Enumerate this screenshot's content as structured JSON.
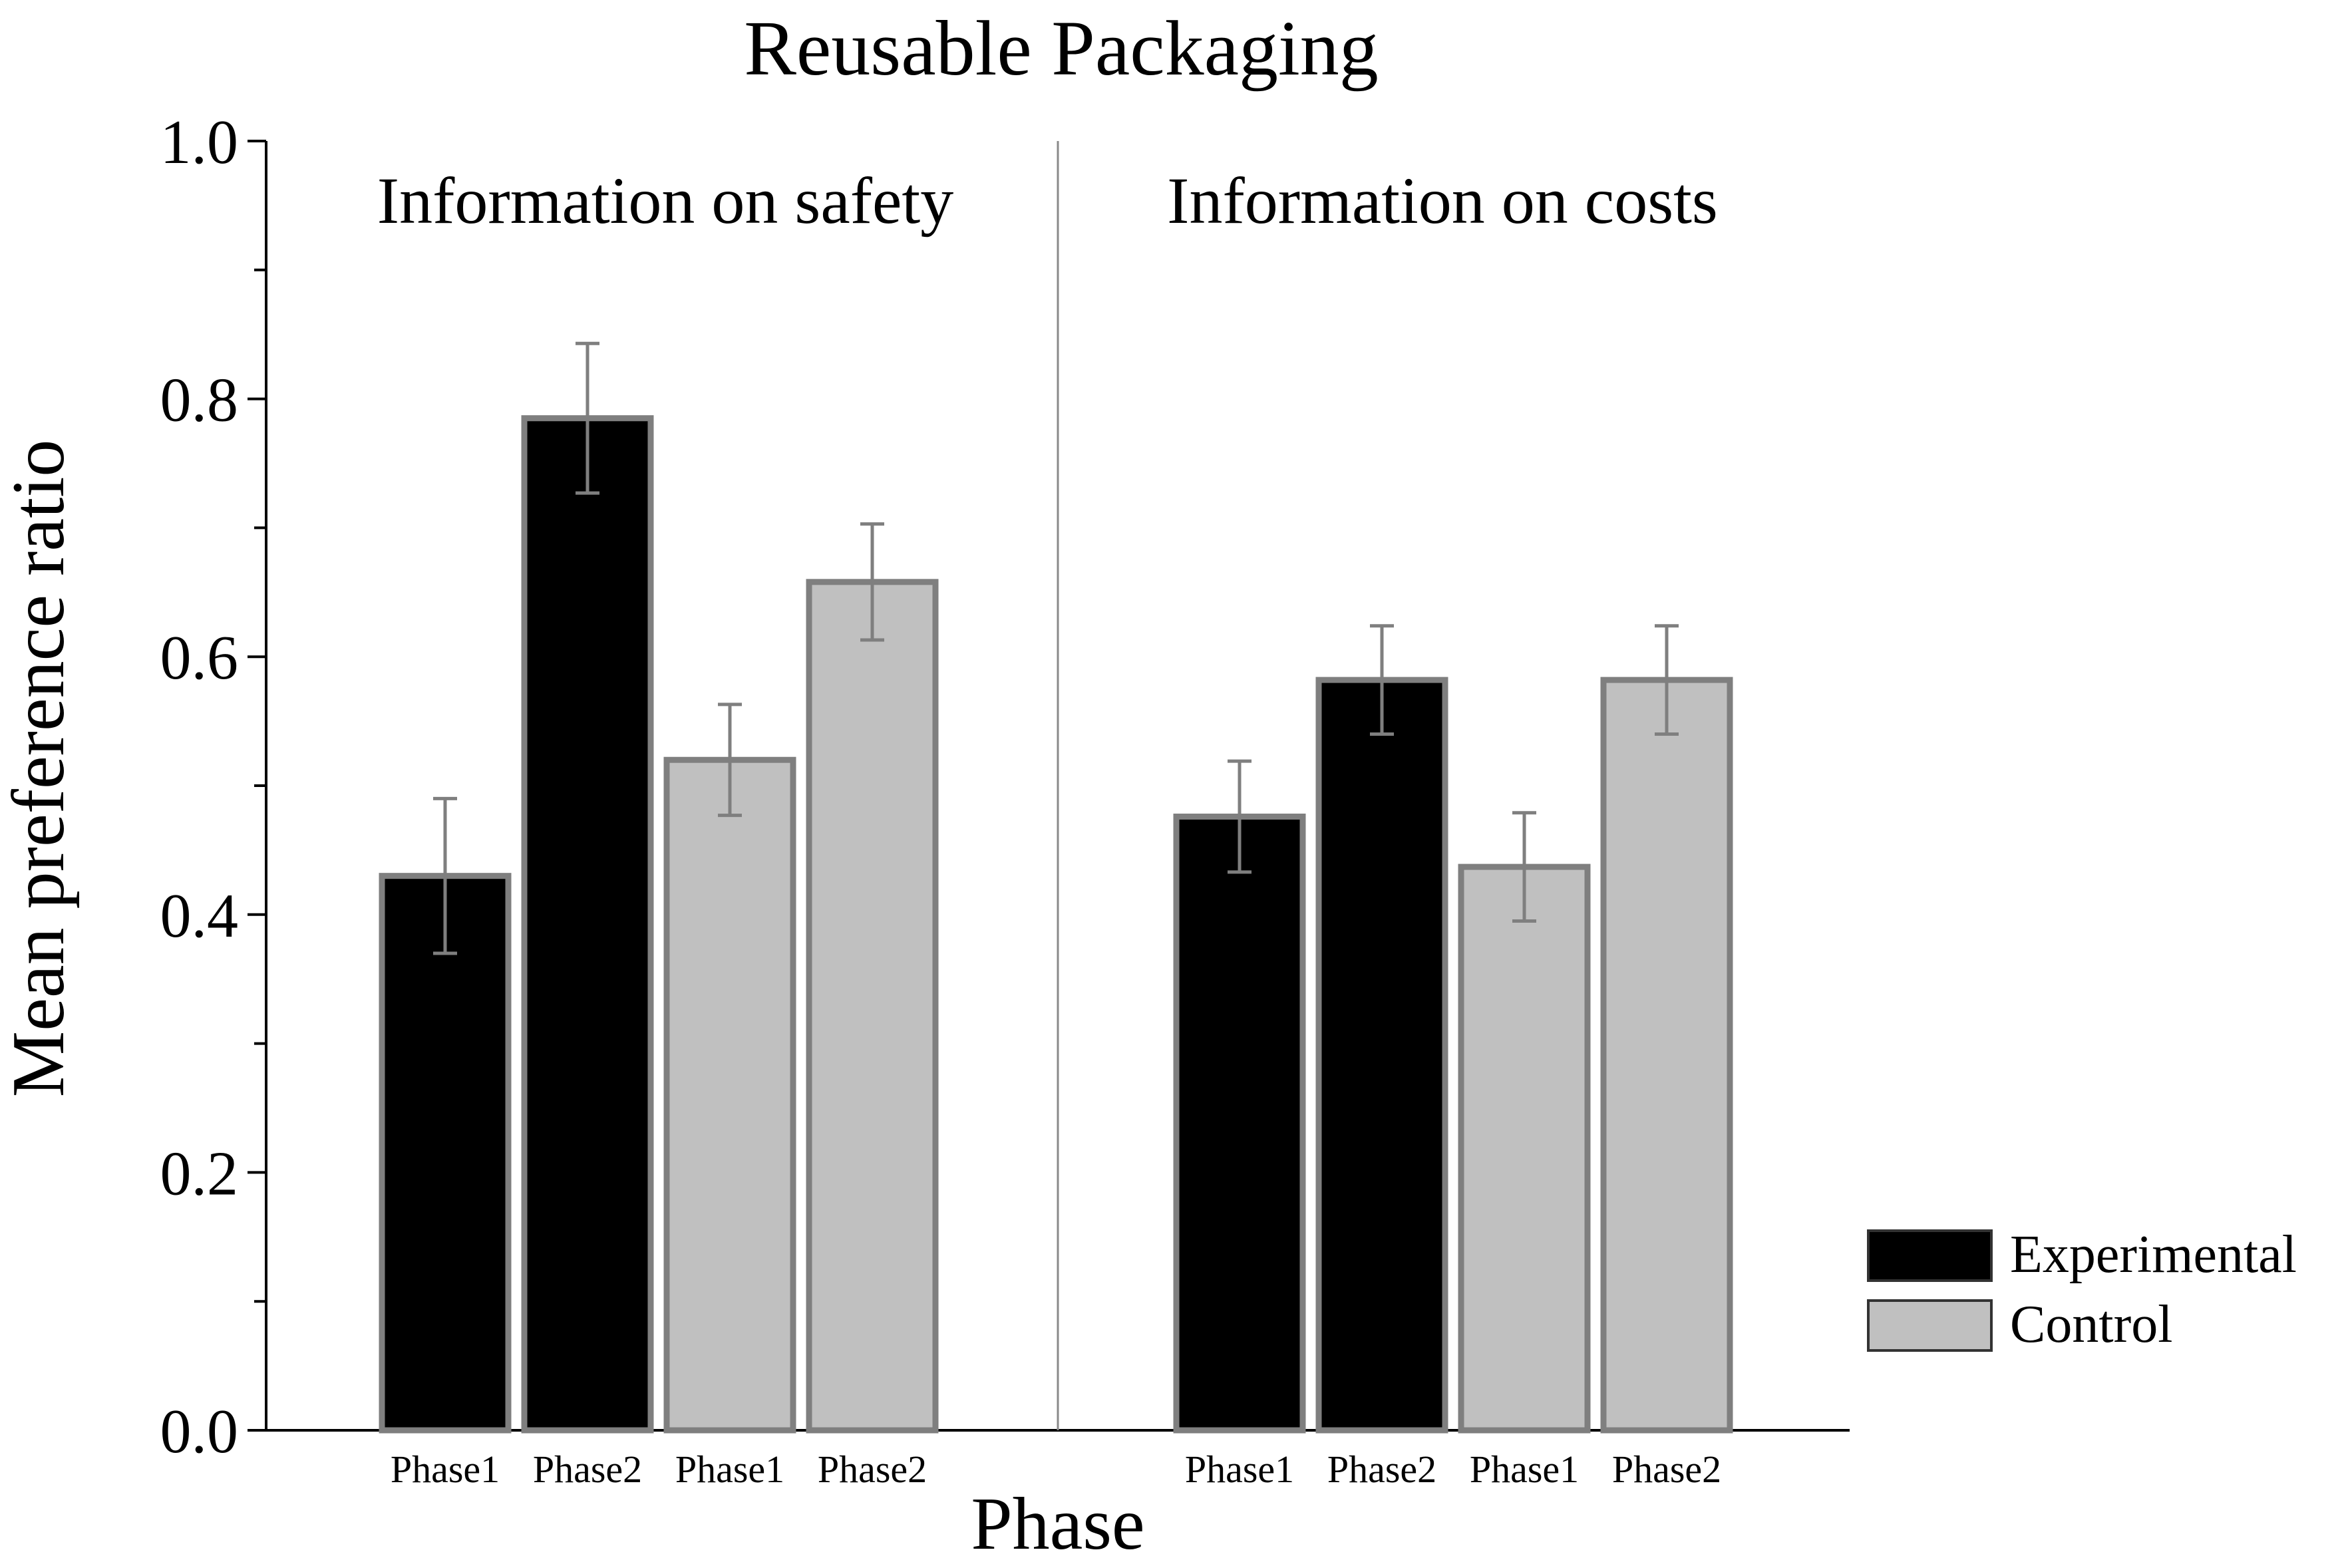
{
  "chart_data": {
    "type": "bar",
    "title": "Reusable Packaging",
    "xlabel": "Phase",
    "ylabel": "Mean preference ratio",
    "ylim": [
      0,
      1.0
    ],
    "yticks": [
      "0.0",
      "0.2",
      "0.4",
      "0.6",
      "0.8",
      "1.0"
    ],
    "groups": [
      {
        "label": "Information on safety",
        "bars": [
          {
            "category": "Phase1",
            "series": "Experimental",
            "value": 0.43,
            "error": 0.06
          },
          {
            "category": "Phase2",
            "series": "Experimental",
            "value": 0.785,
            "error": 0.058
          },
          {
            "category": "Phase1",
            "series": "Control",
            "value": 0.52,
            "error": 0.043
          },
          {
            "category": "Phase2",
            "series": "Control",
            "value": 0.658,
            "error": 0.045
          }
        ]
      },
      {
        "label": "Information on costs",
        "bars": [
          {
            "category": "Phase1",
            "series": "Experimental",
            "value": 0.476,
            "error": 0.043
          },
          {
            "category": "Phase2",
            "series": "Experimental",
            "value": 0.582,
            "error": 0.042
          },
          {
            "category": "Phase1",
            "series": "Control",
            "value": 0.437,
            "error": 0.042
          },
          {
            "category": "Phase2",
            "series": "Control",
            "value": 0.582,
            "error": 0.042
          }
        ]
      }
    ],
    "legend": [
      {
        "name": "Experimental",
        "color": "#000000"
      },
      {
        "name": "Control",
        "color": "#c0c0c0"
      }
    ],
    "legend_position": "bottom-right",
    "bar_edge_color": "#7f7f7f",
    "error_bar_color": "#7f7f7f"
  }
}
